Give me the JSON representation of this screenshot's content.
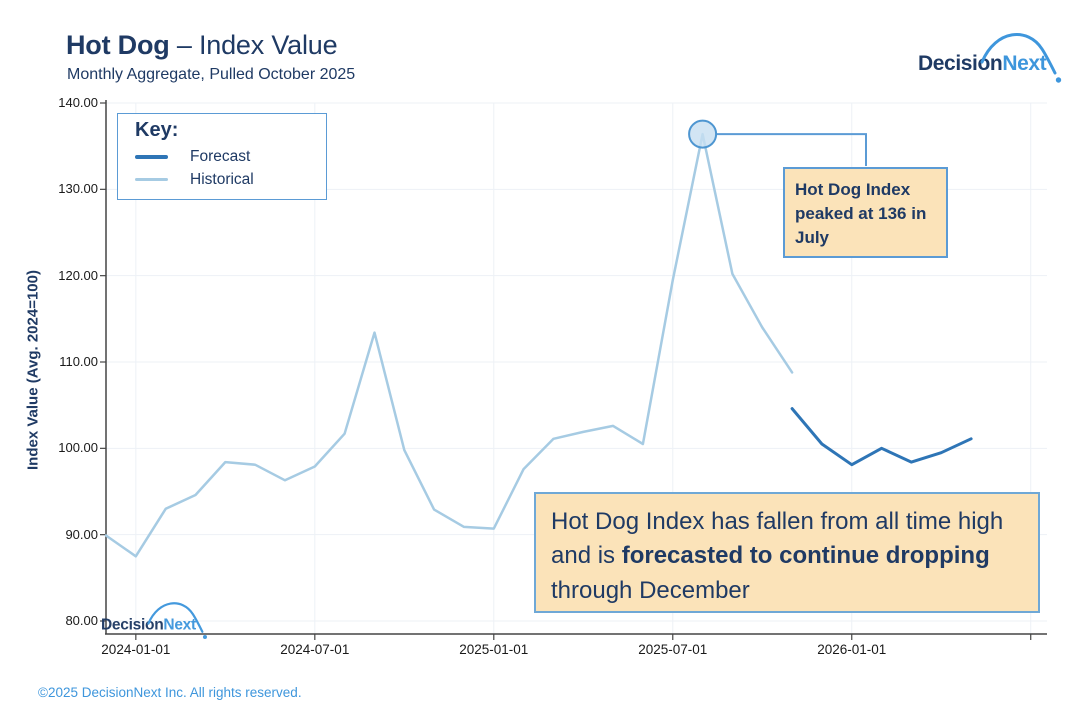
{
  "header": {
    "title_bold": "Hot Dog",
    "title_rest": " – Index Value",
    "subtitle": "Monthly Aggregate, Pulled October 2025"
  },
  "logo": {
    "part1": "Decision",
    "part2": "Next"
  },
  "legend": {
    "title": "Key:",
    "items": [
      {
        "label": "Forecast",
        "color": "#2E75B6",
        "thickness": 4
      },
      {
        "label": "Historical",
        "color": "#A6CBE3",
        "thickness": 3.5
      }
    ]
  },
  "axes": {
    "y_label": "Index Value (Avg. 2024=100)",
    "y_ticks": [
      {
        "label": "140.00",
        "value": 140
      },
      {
        "label": "130.00",
        "value": 130
      },
      {
        "label": "120.00",
        "value": 120
      },
      {
        "label": "110.00",
        "value": 110
      },
      {
        "label": "100.00",
        "value": 100
      },
      {
        "label": "90.00",
        "value": 90
      },
      {
        "label": "80.00",
        "value": 80
      }
    ],
    "x_ticks": [
      {
        "label": "2024-01-01"
      },
      {
        "label": "2024-07-01"
      },
      {
        "label": "2025-01-01"
      },
      {
        "label": "2025-07-01"
      },
      {
        "label": "2026-01-01"
      },
      {
        "label": ""
      }
    ]
  },
  "annotations": {
    "peak": {
      "text": "Hot Dog Index peaked at 136 in July"
    },
    "note": {
      "pre": "Hot Dog Index has fallen from all time high and is ",
      "bold": "forecasted to continue dropping",
      "post": " through December"
    }
  },
  "footer": {
    "text": "©2025 DecisionNext Inc. All rights reserved."
  },
  "colors": {
    "navy": "#1F3A64",
    "forecast_blue": "#2E75B6",
    "historical_blue": "#A6CBE3",
    "callout_border": "#5B9BD5",
    "callout_fill": "#FBE3B9",
    "gridline": "#EDF1F6",
    "axis": "#454545",
    "brand_blue": "#3E96DC"
  },
  "chart_data": {
    "type": "line",
    "title": "Hot Dog – Index Value",
    "subtitle": "Monthly Aggregate, Pulled October 2025",
    "xlabel": "",
    "ylabel": "Index Value (Avg. 2024=100)",
    "ylim": [
      80,
      140
    ],
    "grid": true,
    "legend_position": "top-left",
    "y_tick_labels": [
      "140.00",
      "130.00",
      "120.00",
      "110.00",
      "100.00",
      "90.00",
      "80.00"
    ],
    "x_tick_labels": [
      "2024-01-01",
      "2024-07-01",
      "2025-01-01",
      "2025-07-01",
      "2026-01-01"
    ],
    "series": [
      {
        "name": "Historical",
        "color": "#A6CBE3",
        "months": [
          "2023-11",
          "2023-12",
          "2024-01",
          "2024-02",
          "2024-03",
          "2024-04",
          "2024-05",
          "2024-06",
          "2024-07",
          "2024-08",
          "2024-09",
          "2024-10",
          "2024-11",
          "2024-12",
          "2025-01",
          "2025-02",
          "2025-03",
          "2025-04",
          "2025-05",
          "2025-06",
          "2025-07",
          "2025-08",
          "2025-09",
          "2025-10"
        ],
        "values": [
          89.9,
          87.5,
          93.0,
          94.6,
          98.4,
          98.1,
          96.3,
          97.9,
          101.7,
          113.4,
          99.8,
          92.9,
          90.9,
          90.7,
          97.6,
          101.1,
          101.9,
          102.6,
          100.5,
          119.5,
          136.4,
          120.2,
          114.0,
          108.8
        ]
      },
      {
        "name": "Forecast",
        "color": "#2E75B6",
        "months": [
          "2025-10",
          "2025-11",
          "2025-12",
          "2026-01",
          "2026-02",
          "2026-03",
          "2026-04"
        ],
        "values": [
          104.6,
          100.5,
          98.1,
          100.0,
          98.4,
          99.5,
          101.1
        ]
      }
    ],
    "peak_marker": {
      "month": "2025-07",
      "value": 136.4,
      "series": "Historical"
    }
  }
}
